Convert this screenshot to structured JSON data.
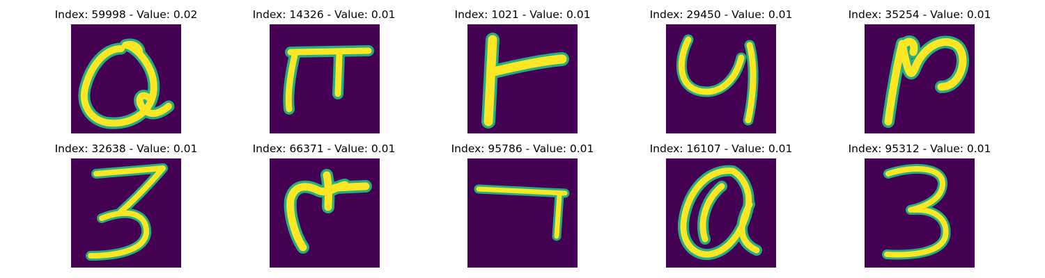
{
  "panels": [
    {
      "title": "Index: 59998 - Value: 0.02"
    },
    {
      "title": "Index: 14326 - Value: 0.01"
    },
    {
      "title": "Index: 1021 - Value: 0.01"
    },
    {
      "title": "Index: 29450 - Value: 0.01"
    },
    {
      "title": "Index: 35254 - Value: 0.01"
    },
    {
      "title": "Index: 32638 - Value: 0.01"
    },
    {
      "title": "Index: 66371 - Value: 0.01"
    },
    {
      "title": "Index: 95786 - Value: 0.01"
    },
    {
      "title": "Index: 16107 - Value: 0.01"
    },
    {
      "title": "Index: 95312 - Value: 0.01"
    }
  ],
  "colors": {
    "background": "#440154",
    "edge": "#27ad81",
    "stroke": "#fde725"
  }
}
